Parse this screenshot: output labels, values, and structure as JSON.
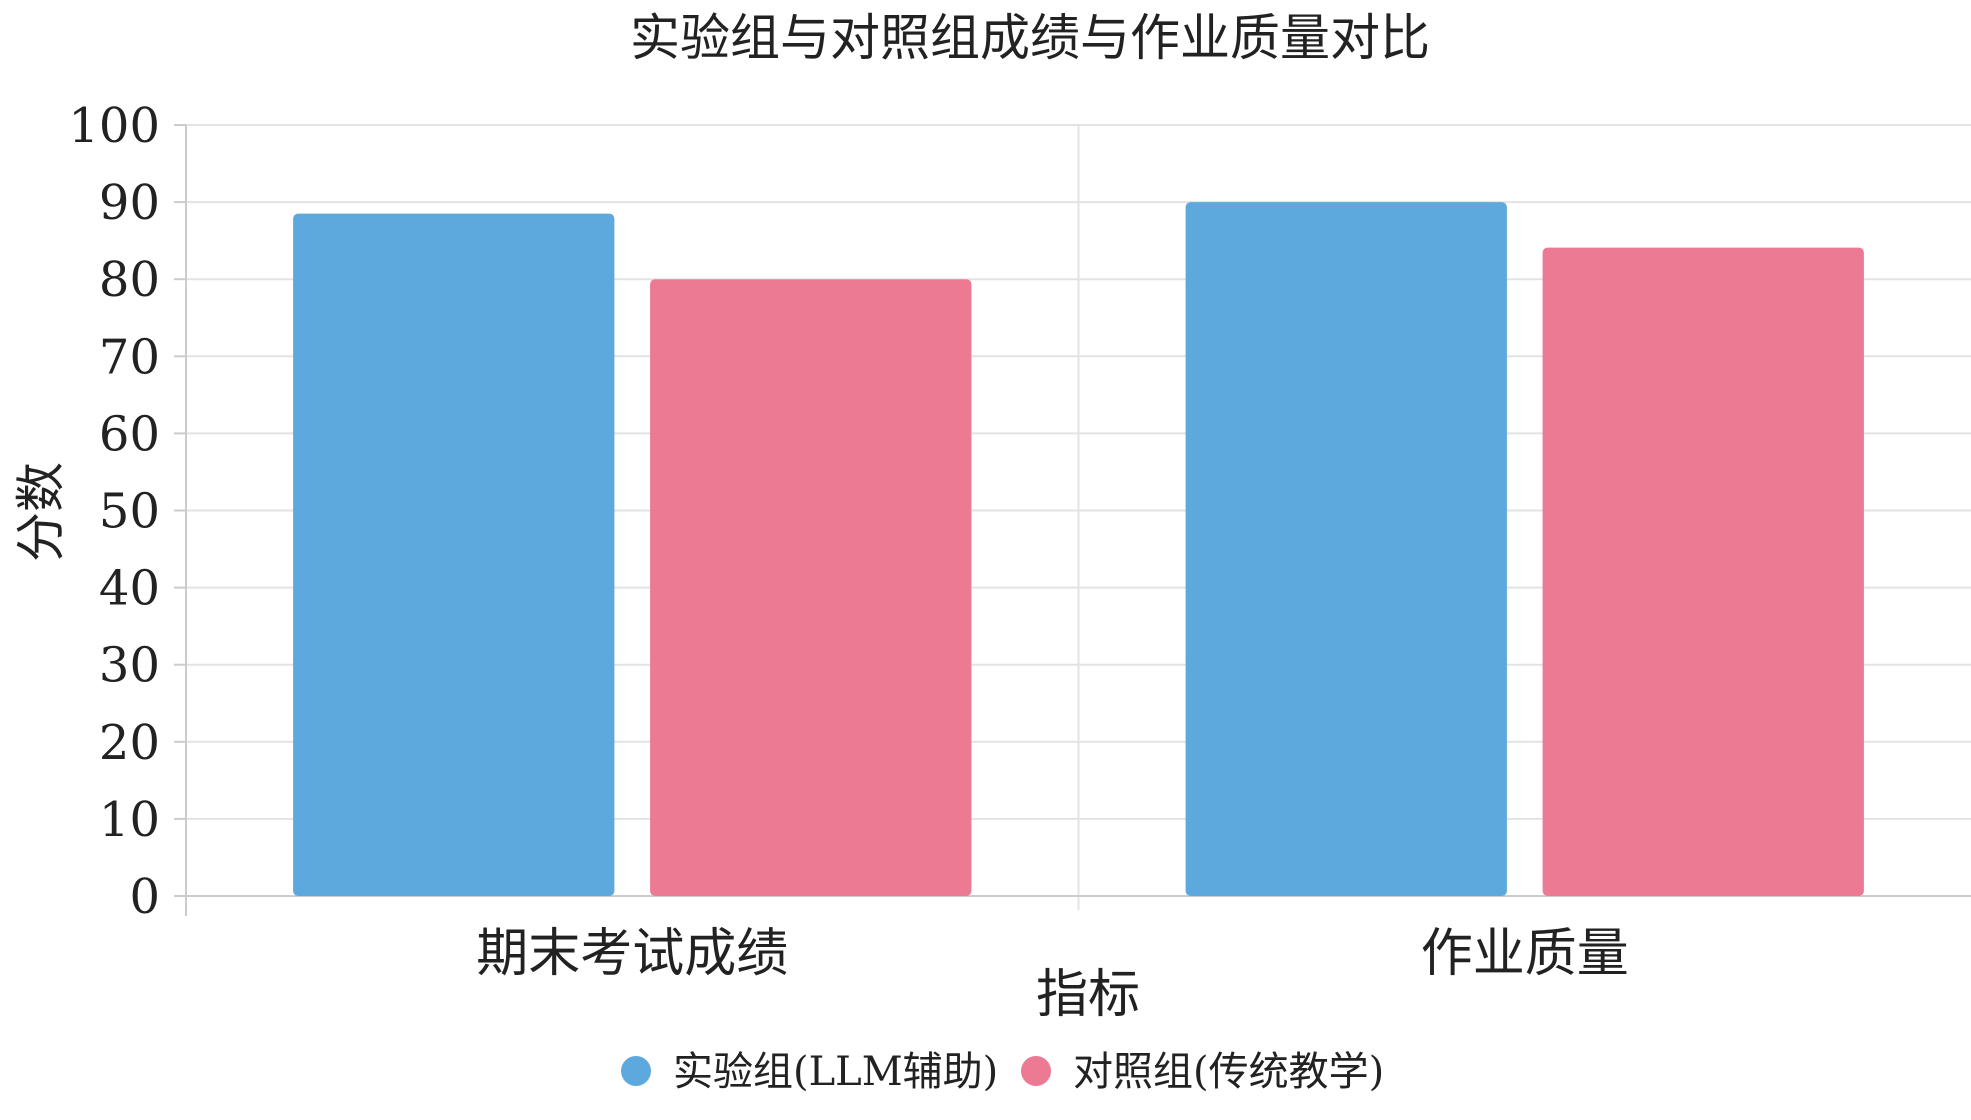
{
  "chart_data": {
    "type": "bar",
    "title": "实验组与对照组成绩与作业质量对比",
    "xlabel": "指标",
    "ylabel": "分数",
    "categories": [
      "期末考试成绩",
      "作业质量"
    ],
    "series": [
      {
        "name": "实验组(LLM辅助)",
        "values": [
          88.5,
          90.0
        ],
        "color": "#5DA9DD"
      },
      {
        "name": "对照组(传统教学)",
        "values": [
          80.0,
          84.1
        ],
        "color": "#EC7A93"
      }
    ],
    "ylim": [
      0,
      100
    ],
    "yticks": [
      0,
      10,
      20,
      30,
      40,
      50,
      60,
      70,
      80,
      90,
      100
    ],
    "grid": true,
    "legend_position": "bottom-center"
  }
}
